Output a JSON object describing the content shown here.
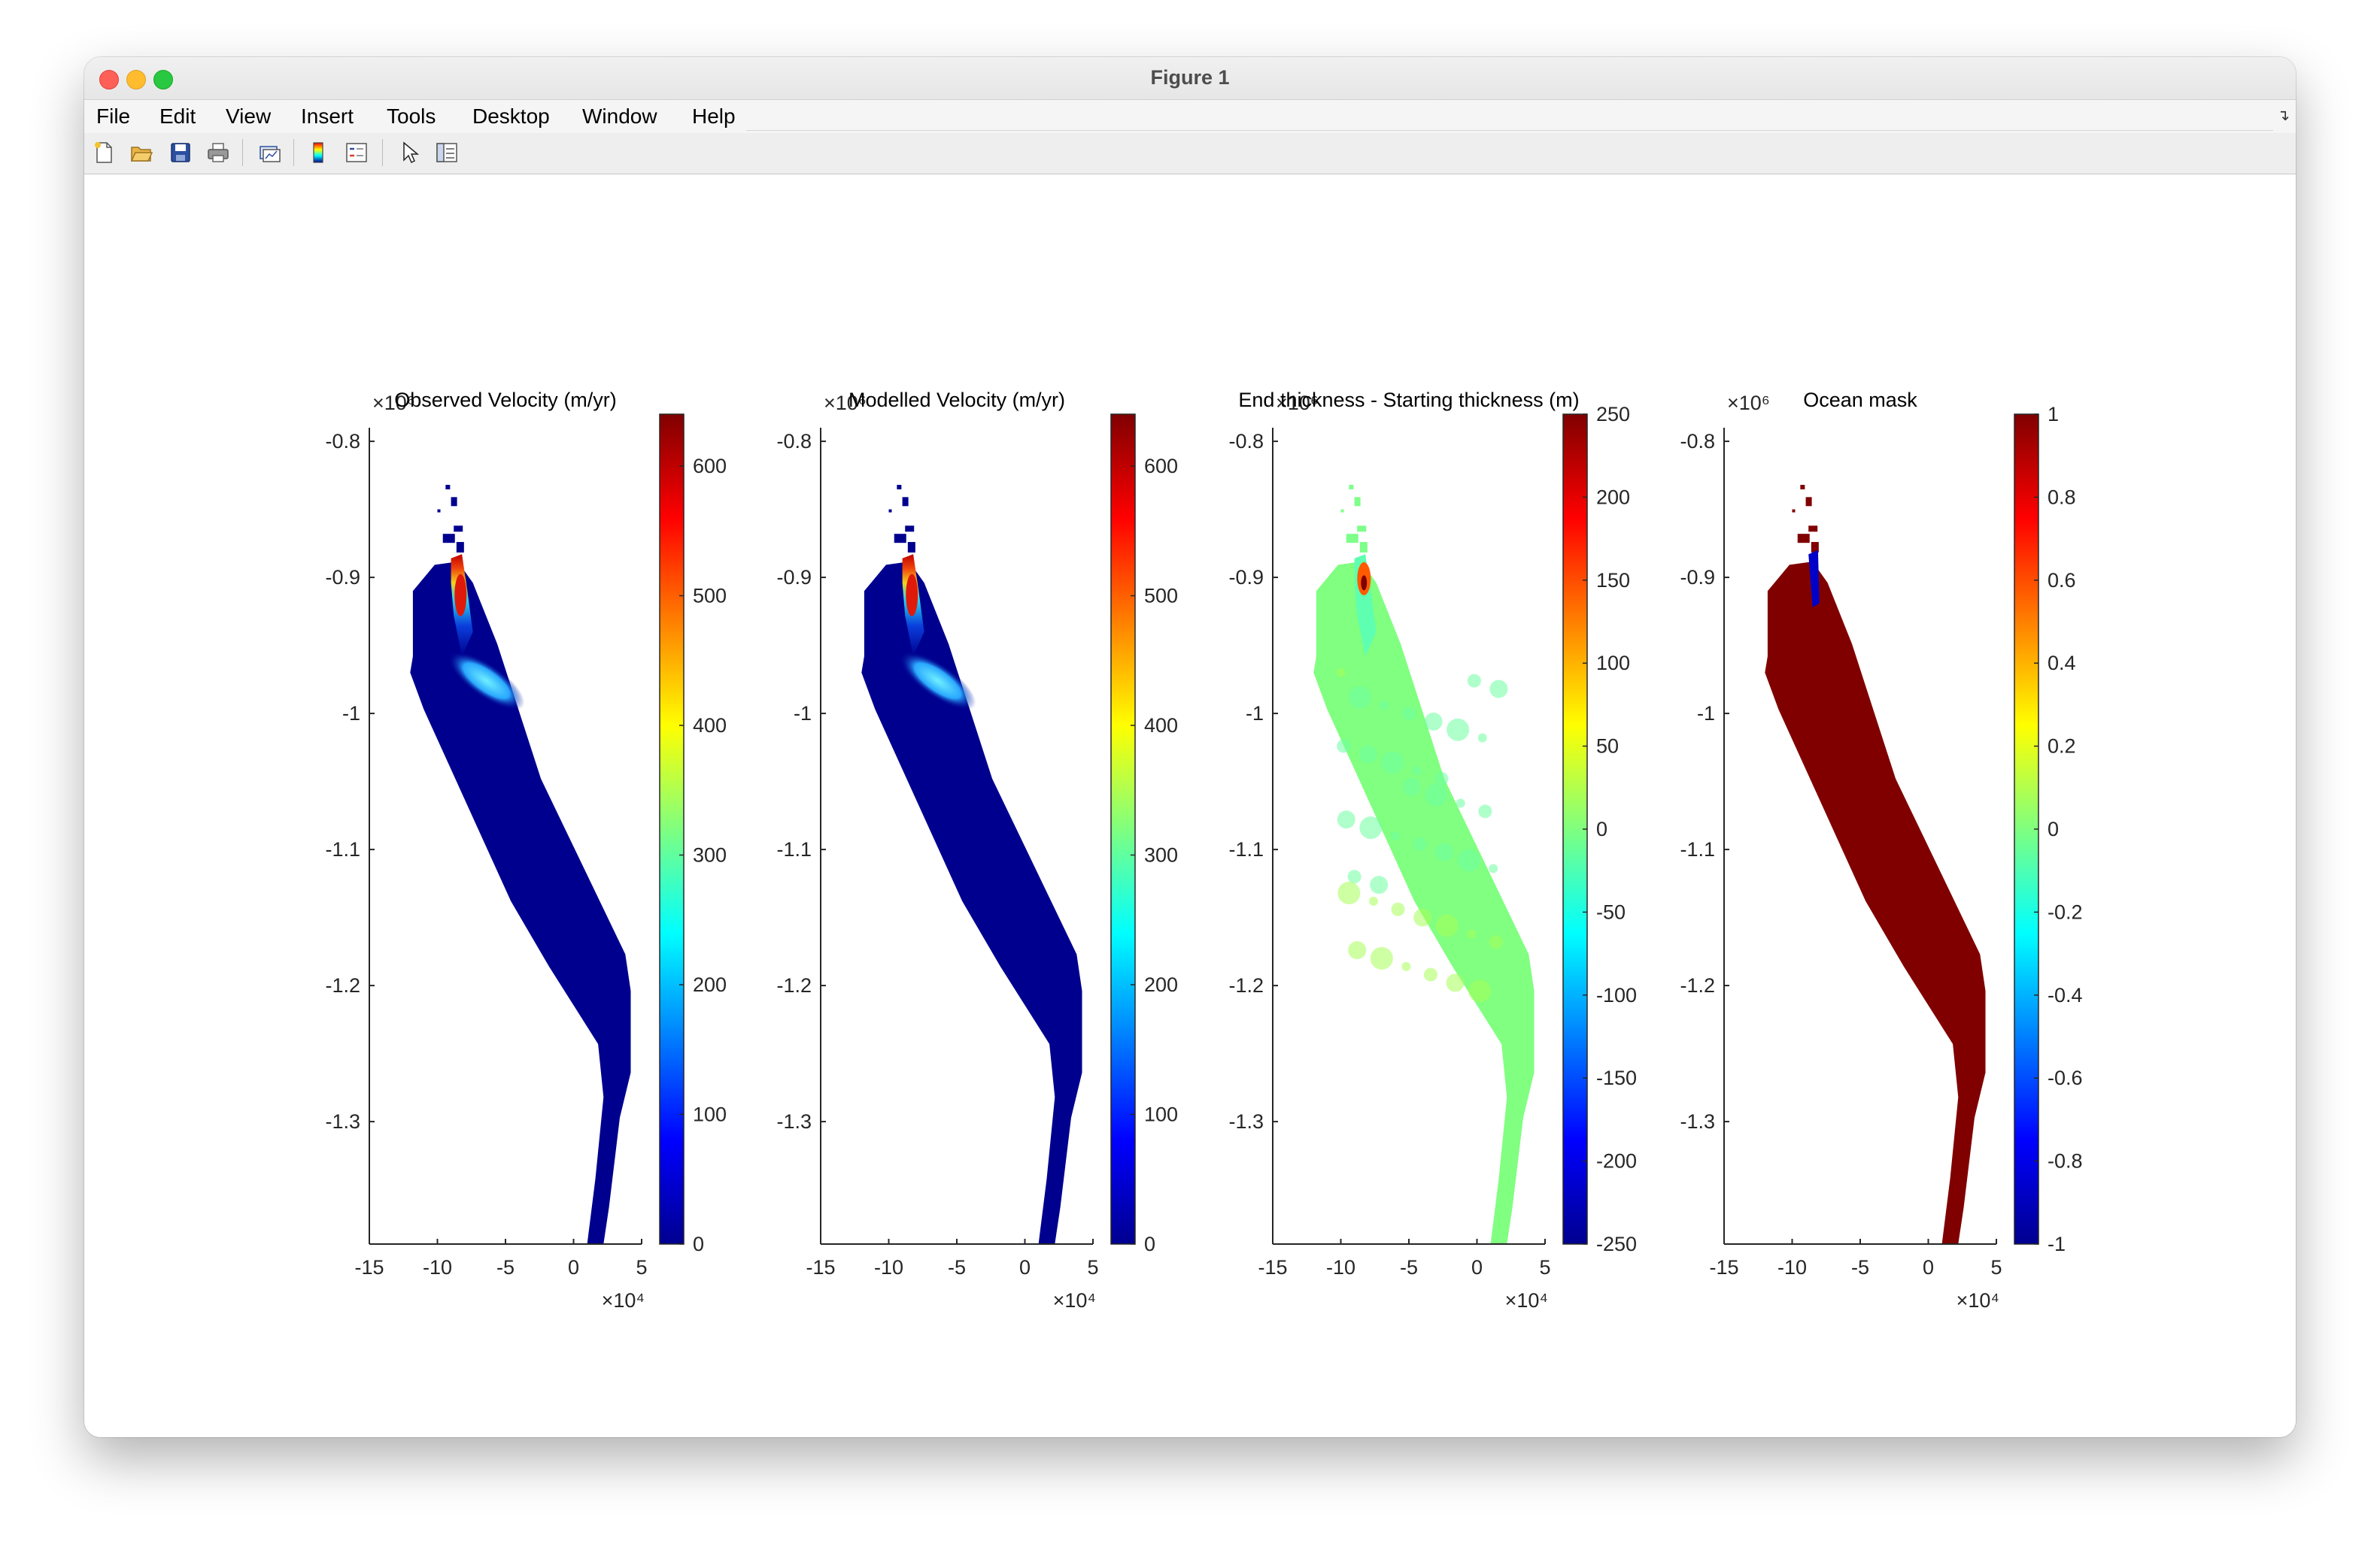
{
  "window": {
    "title": "Figure 1"
  },
  "menu": [
    "File",
    "Edit",
    "View",
    "Insert",
    "Tools",
    "Desktop",
    "Window",
    "Help"
  ],
  "toolbar": {
    "icons": [
      "new-figure-icon",
      "open-file-icon",
      "save-icon",
      "print-icon",
      "link-plot-icon",
      "insert-colorbar-icon",
      "insert-legend-icon",
      "edit-plot-icon",
      "property-inspector-icon"
    ]
  },
  "chart_data": [
    {
      "type": "heatmap",
      "title": "Observed Velocity (m/yr)",
      "x_ticks": [
        "-15",
        "-10",
        "-5",
        "0",
        "5"
      ],
      "x_exponent": "×10⁴",
      "y_ticks": [
        "-0.8",
        "-0.9",
        "-1",
        "-1.1",
        "-1.2",
        "-1.3"
      ],
      "y_exponent": "×10⁶",
      "xlim": [
        -15,
        5
      ],
      "ylim": [
        -1.39,
        -0.79
      ],
      "colorbar": {
        "colormap": "jet",
        "range": [
          0,
          640
        ],
        "ticks": [
          "600",
          "500",
          "400",
          "300",
          "200",
          "100",
          "0"
        ]
      }
    },
    {
      "type": "heatmap",
      "title": "Modelled Velocity (m/yr)",
      "x_ticks": [
        "-15",
        "-10",
        "-5",
        "0",
        "5"
      ],
      "x_exponent": "×10⁴",
      "y_ticks": [
        "-0.8",
        "-0.9",
        "-1",
        "-1.1",
        "-1.2",
        "-1.3"
      ],
      "y_exponent": "×10⁶",
      "xlim": [
        -15,
        5
      ],
      "ylim": [
        -1.39,
        -0.79
      ],
      "colorbar": {
        "colormap": "jet",
        "range": [
          0,
          640
        ],
        "ticks": [
          "600",
          "500",
          "400",
          "300",
          "200",
          "100",
          "0"
        ]
      }
    },
    {
      "type": "heatmap",
      "title": "End thickness - Starting thickness (m)",
      "x_ticks": [
        "-15",
        "-10",
        "-5",
        "0",
        "5"
      ],
      "x_exponent": "×10⁴",
      "y_ticks": [
        "-0.8",
        "-0.9",
        "-1",
        "-1.1",
        "-1.2",
        "-1.3"
      ],
      "y_exponent": "×10⁶",
      "xlim": [
        -15,
        5
      ],
      "ylim": [
        -1.39,
        -0.79
      ],
      "colorbar": {
        "colormap": "jet",
        "range": [
          -250,
          250
        ],
        "ticks": [
          "250",
          "200",
          "150",
          "100",
          "50",
          "0",
          "-50",
          "-100",
          "-150",
          "-200",
          "-250"
        ]
      }
    },
    {
      "type": "heatmap",
      "title": "Ocean mask",
      "x_ticks": [
        "-15",
        "-10",
        "-5",
        "0",
        "5"
      ],
      "x_exponent": "×10⁴",
      "y_ticks": [
        "-0.8",
        "-0.9",
        "-1",
        "-1.1",
        "-1.2",
        "-1.3"
      ],
      "y_exponent": "×10⁶",
      "xlim": [
        -15,
        5
      ],
      "ylim": [
        -1.39,
        -0.79
      ],
      "colorbar": {
        "colormap": "jet",
        "range": [
          -1,
          1
        ],
        "ticks": [
          "1",
          "0.8",
          "0.6",
          "0.4",
          "0.2",
          "0",
          "-0.2",
          "-0.4",
          "-0.6",
          "-0.8",
          "-1"
        ]
      }
    }
  ]
}
